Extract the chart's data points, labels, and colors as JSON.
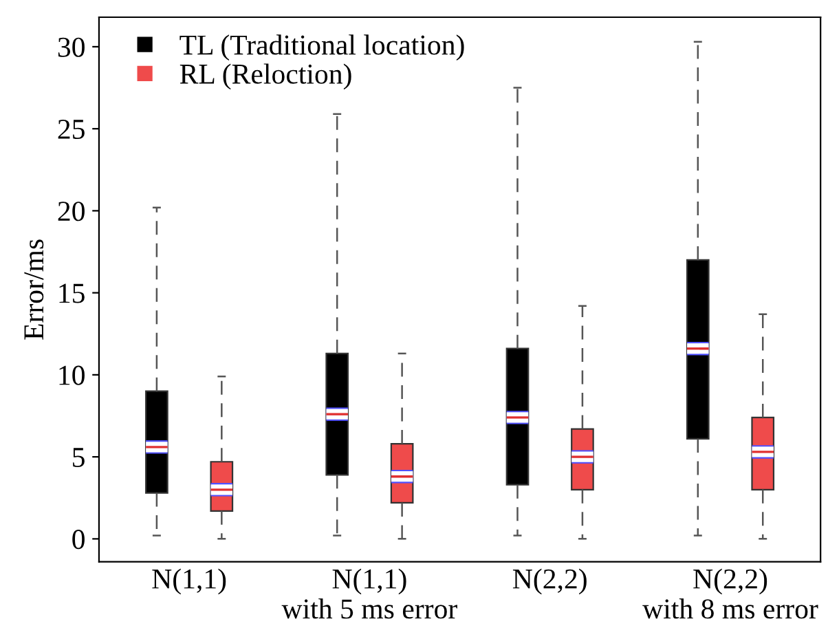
{
  "chart_data": {
    "type": "box",
    "ylabel": "Error/ms",
    "categories": [
      "N(1,1)",
      "N(1,1)\nwith 5 ms error",
      "N(2,2)",
      "N(2,2)\nwith 8 ms error"
    ],
    "series": [
      {
        "name": "TL (Traditional location)",
        "color": "#000000",
        "boxes": [
          {
            "low": 0.2,
            "q1": 2.8,
            "median": 5.6,
            "q3": 9.0,
            "high": 20.2
          },
          {
            "low": 0.2,
            "q1": 3.9,
            "median": 7.6,
            "q3": 11.3,
            "high": 25.9
          },
          {
            "low": 0.2,
            "q1": 3.3,
            "median": 7.4,
            "q3": 11.6,
            "high": 27.5
          },
          {
            "low": 0.2,
            "q1": 6.1,
            "median": 11.6,
            "q3": 17.0,
            "high": 30.3
          }
        ]
      },
      {
        "name": "RL (Reloction)",
        "color": "#ef4b4b",
        "boxes": [
          {
            "low": 0,
            "q1": 1.7,
            "median": 3.0,
            "q3": 4.7,
            "high": 9.9
          },
          {
            "low": 0,
            "q1": 2.2,
            "median": 3.8,
            "q3": 5.8,
            "high": 11.3
          },
          {
            "low": 0,
            "q1": 3.0,
            "median": 5.0,
            "q3": 6.7,
            "high": 14.2
          },
          {
            "low": 0,
            "q1": 3.0,
            "median": 5.3,
            "q3": 7.4,
            "high": 13.7
          }
        ]
      }
    ],
    "ylim": [
      -1.4,
      31.8
    ],
    "yticks": [
      0,
      5,
      10,
      15,
      20,
      25,
      30
    ],
    "grid": false,
    "legend": "top left",
    "line_style": "dashed"
  }
}
